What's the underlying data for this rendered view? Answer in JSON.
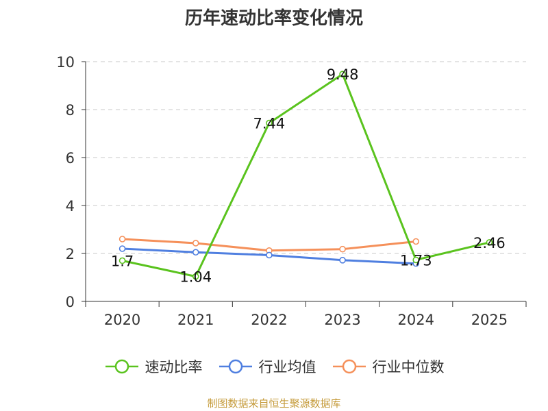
{
  "chart_data": {
    "type": "line",
    "title": "历年速动比率变化情况",
    "categories": [
      "2020",
      "2021",
      "2022",
      "2023",
      "2024",
      "2025"
    ],
    "ylim": [
      0,
      10
    ],
    "yticks": [
      "0",
      "2",
      "4",
      "6",
      "8",
      "10"
    ],
    "grid": true,
    "legend_position": "bottom",
    "series": [
      {
        "name": "速动比率",
        "color": "#5ac31e",
        "values": [
          1.7,
          1.04,
          7.44,
          9.48,
          1.73,
          2.46
        ],
        "labels": [
          "1.7",
          "1.04",
          "7.44",
          "9.48",
          "1.73",
          "2.46"
        ]
      },
      {
        "name": "行业均值",
        "color": "#4f7fe0",
        "values": [
          2.2,
          2.05,
          1.93,
          1.72,
          1.58,
          null
        ]
      },
      {
        "name": "行业中位数",
        "color": "#f5905a",
        "values": [
          2.6,
          2.43,
          2.12,
          2.18,
          2.5,
          null
        ]
      }
    ]
  },
  "source": "制图数据来自恒生聚源数据库"
}
